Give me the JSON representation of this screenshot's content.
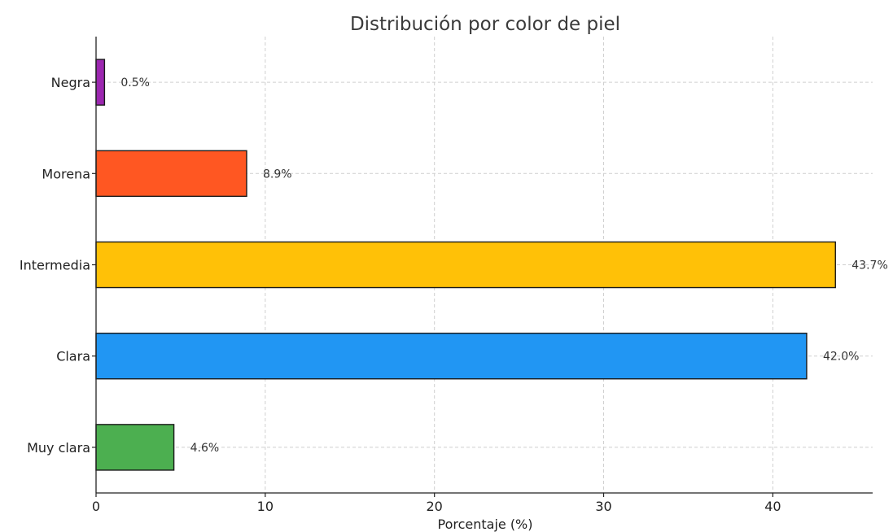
{
  "chart_data": {
    "type": "bar",
    "orientation": "horizontal",
    "title": "Distribución por color de piel",
    "xlabel": "Porcentaje (%)",
    "ylabel": "",
    "xlim": [
      0,
      45.9
    ],
    "x_ticks": [
      0,
      10,
      20,
      30,
      40
    ],
    "grid": true,
    "categories": [
      "Muy clara",
      "Clara",
      "Intermedia",
      "Morena",
      "Negra"
    ],
    "values": [
      4.6,
      42.0,
      43.7,
      8.9,
      0.5
    ],
    "value_labels": [
      "4.6%",
      "42.0%",
      "43.7%",
      "8.9%",
      "0.5%"
    ],
    "colors": [
      "#4caf50",
      "#2196f3",
      "#ffc107",
      "#ff5722",
      "#9c27b0"
    ]
  }
}
